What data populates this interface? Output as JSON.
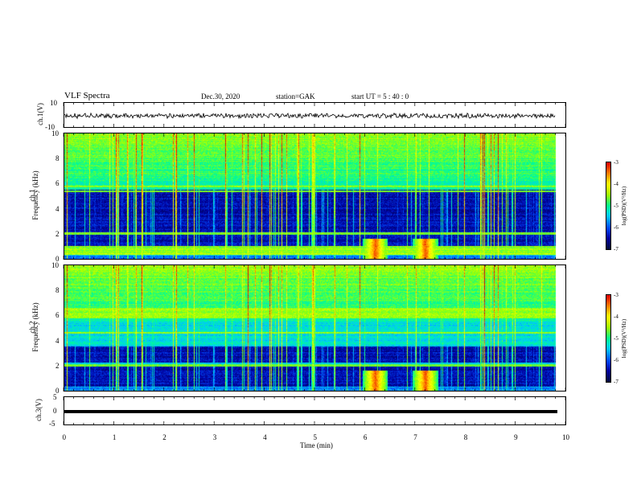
{
  "header": {
    "title": "VLF Spectra",
    "date": "Dec.30, 2020",
    "station": "station=GAK",
    "start": "start  UT =  5 : 40 : 0"
  },
  "colors": {
    "colormap": [
      "#000a40",
      "#0000a0",
      "#0050ff",
      "#00c8ff",
      "#00ff90",
      "#a0ff00",
      "#ffff00",
      "#ff8000",
      "#e00000"
    ],
    "waveform": "#000000",
    "background": "#ffffff"
  },
  "panels": {
    "ch1_wave": {
      "ylabel": "ch.1(V)",
      "yticks": [
        "10",
        "-10"
      ]
    },
    "ch1_spec": {
      "ylabel_line1": "ch.1",
      "ylabel_line2": "Frequency (kHz)",
      "yticks": [
        "10",
        "8",
        "6",
        "4",
        "2",
        "0"
      ]
    },
    "ch2_spec": {
      "ylabel_line1": "ch.2",
      "ylabel_line2": "Frequency (kHz)",
      "yticks": [
        "10",
        "8",
        "6",
        "4",
        "2",
        "0"
      ]
    },
    "ch3_wave": {
      "ylabel": "ch.3(V)",
      "yticks": [
        "5",
        "0",
        "-5"
      ]
    }
  },
  "colorbars": [
    {
      "label": "log(PSD)(V²/Hz)",
      "ticks": [
        "-3",
        "-4",
        "-5",
        "-6",
        "-7"
      ]
    },
    {
      "label": "log(PSD)(V²/Hz)",
      "ticks": [
        "-3",
        "-4",
        "-5",
        "-6",
        "-7"
      ]
    }
  ],
  "xaxis": {
    "label": "Time (min)",
    "ticks": [
      "0",
      "1",
      "2",
      "3",
      "4",
      "5",
      "6",
      "7",
      "8",
      "9",
      "10"
    ]
  },
  "chart_data": {
    "type": "heatmap",
    "title": "VLF Spectra",
    "x_range_min": [
      0,
      10
    ],
    "data_end_min": 9.8,
    "channels": [
      {
        "name": "ch.1",
        "freq_range_khz": [
          0,
          10
        ],
        "colorbar_range_log_psd": [
          -7,
          -3
        ],
        "dark_bands_khz": [
          [
            0.5,
            5.5
          ]
        ],
        "bright_band_khz": [
          0.3,
          1.0
        ],
        "persistent_lines_khz": [
          2.0,
          5.4,
          5.8
        ],
        "enhancement_events_min": [
          6.2,
          7.2
        ]
      },
      {
        "name": "ch.2",
        "freq_range_khz": [
          0,
          10
        ],
        "colorbar_range_log_psd": [
          -7,
          -3
        ],
        "dark_bands_khz": [
          [
            0.3,
            2.0
          ],
          [
            2.2,
            3.5
          ]
        ],
        "bright_band_khz": [
          5.8,
          6.6
        ],
        "persistent_lines_khz": [
          2.0,
          4.6,
          6.2
        ],
        "enhancement_events_min": [
          6.2,
          7.2
        ]
      }
    ],
    "waveforms": [
      {
        "name": "ch.1(V)",
        "ylim": [
          -10,
          10
        ],
        "approx_level_v": 0
      },
      {
        "name": "ch.3(V)",
        "ylim": [
          -5,
          5
        ],
        "approx_level_v": 0
      }
    ]
  }
}
